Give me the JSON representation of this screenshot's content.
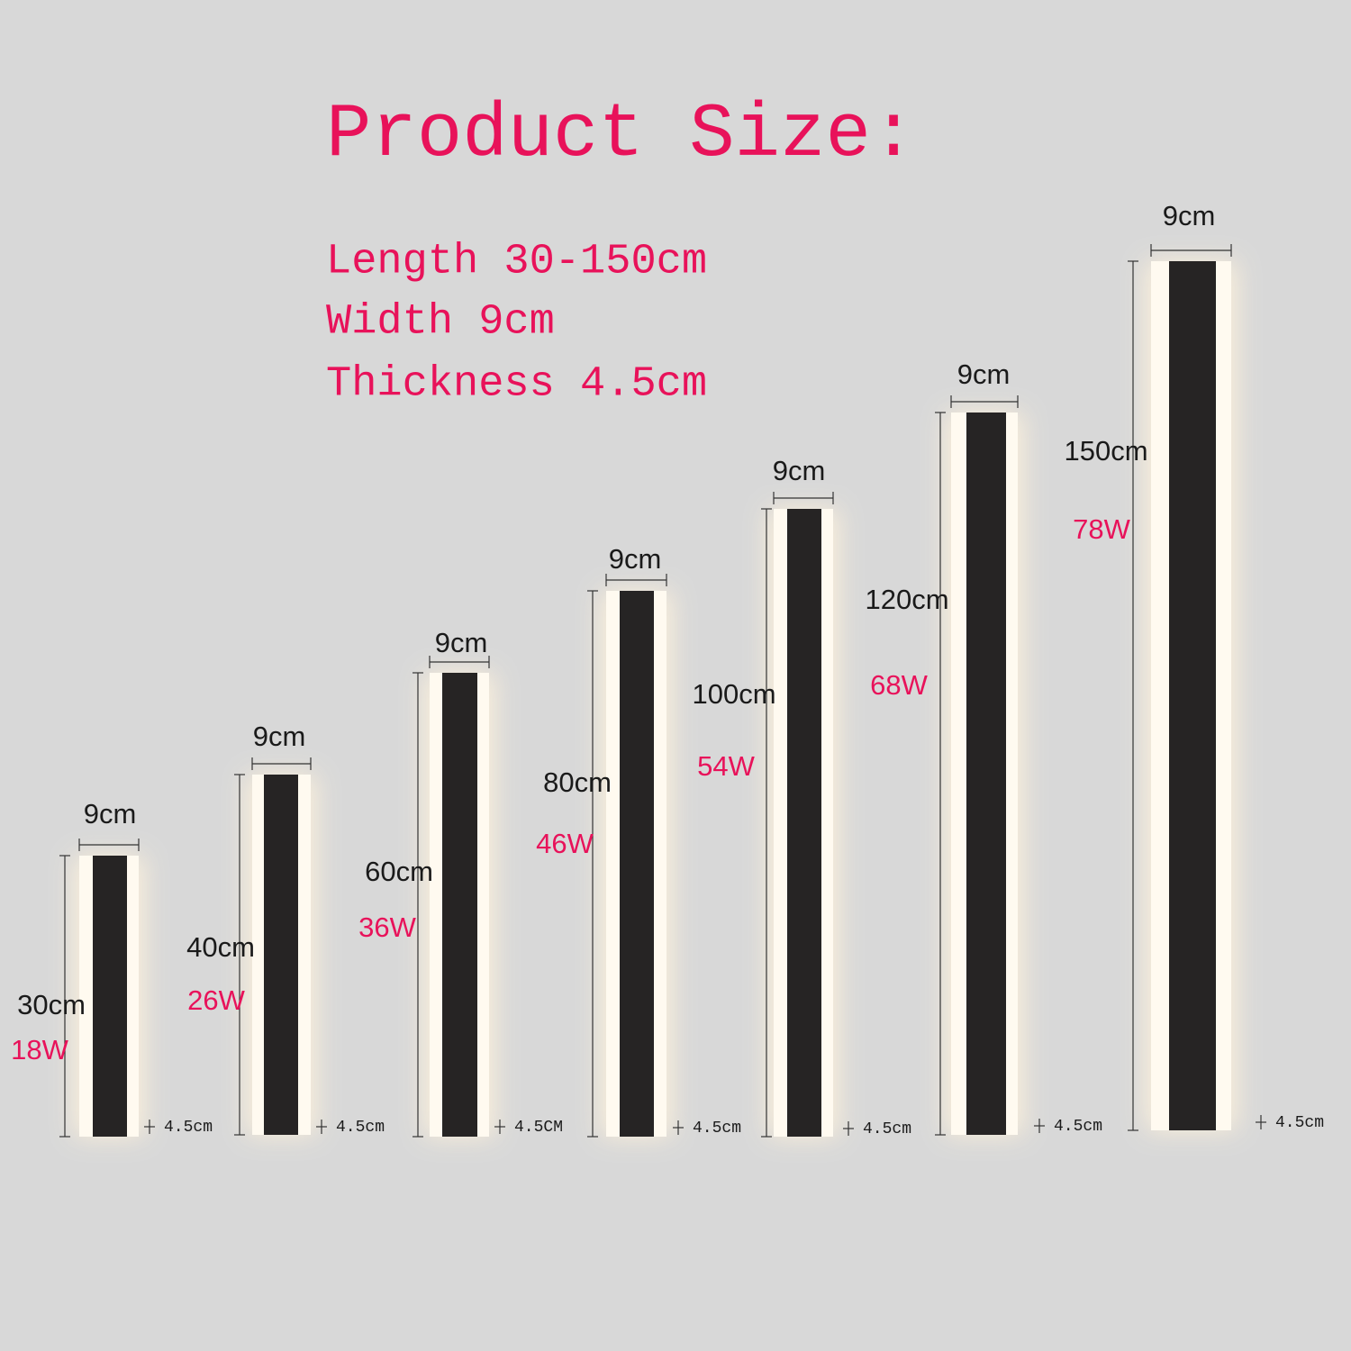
{
  "header": {
    "title": "Product Size:"
  },
  "specs": [
    "Length 30-150cm",
    "Width 9cm",
    "Thickness 4.5cm"
  ],
  "products": [
    {
      "width": "9cm",
      "length": "30cm",
      "power": "18W",
      "thickness": "4.5cm"
    },
    {
      "width": "9cm",
      "length": "40cm",
      "power": "26W",
      "thickness": "4.5cm"
    },
    {
      "width": "9cm",
      "length": "60cm",
      "power": "36W",
      "thickness": "4.5CM"
    },
    {
      "width": "9cm",
      "length": "80cm",
      "power": "46W",
      "thickness": "4.5cm"
    },
    {
      "width": "9cm",
      "length": "100cm",
      "power": "54W",
      "thickness": "4.5cm"
    },
    {
      "width": "9cm",
      "length": "120cm",
      "power": "68W",
      "thickness": "4.5cm"
    },
    {
      "width": "9cm",
      "length": "150cm",
      "power": "78W",
      "thickness": "4.5cm"
    }
  ]
}
